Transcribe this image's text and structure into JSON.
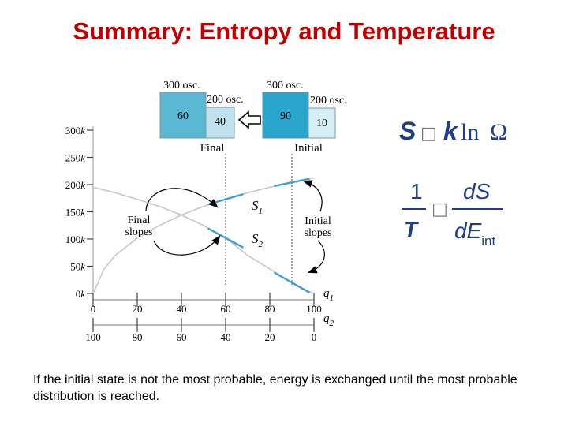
{
  "slide": {
    "title": "Summary: Entropy and Temperature",
    "caption": "If the initial state is not the most probable, energy is exchanged until the most probable distribution is reached."
  },
  "boxes": {
    "final": {
      "label": "Final",
      "a_osc": "300 osc.",
      "b_osc": "200 osc.",
      "a_value": "60",
      "b_value": "40"
    },
    "initial": {
      "label": "Initial",
      "a_osc": "300 osc.",
      "b_osc": "200 osc.",
      "a_value": "90",
      "b_value": "10"
    },
    "color_a_final": "#5bb8d4",
    "color_b_final": "#bfe2ee",
    "color_a_initial": "#2aa5cc",
    "color_b_initial": "#d6eef6"
  },
  "annotations": {
    "final_slopes": [
      "Final",
      "slopes"
    ],
    "initial_slopes": [
      "Initial",
      "slopes"
    ],
    "s1": "S",
    "s1_sub": "1",
    "s2": "S",
    "s2_sub": "2"
  },
  "formulas": {
    "entropy_S": "S",
    "entropy_box": "□",
    "entropy_k": "k",
    "entropy_ln": "ln",
    "entropy_omega": "Ω",
    "temp_num": "1",
    "temp_den": "T",
    "temp_box": "□",
    "temp_dS": "dS",
    "temp_dE": "dE",
    "temp_dE_sub": "int"
  },
  "chart_data": {
    "type": "line",
    "ylabel_ticks": [
      "300k",
      "250k",
      "200k",
      "150k",
      "100k",
      "50k",
      "0k"
    ],
    "y_values": [
      300,
      250,
      200,
      150,
      100,
      50,
      0
    ],
    "ylim": [
      0,
      300
    ],
    "x_axis_q1": {
      "label": "q",
      "sub": "1",
      "ticks": [
        "0",
        "20",
        "40",
        "60",
        "80",
        "100"
      ],
      "values": [
        0,
        20,
        40,
        60,
        80,
        100
      ]
    },
    "x_axis_q2": {
      "label": "q",
      "sub": "2",
      "ticks": [
        "100",
        "80",
        "60",
        "40",
        "20",
        "0"
      ],
      "values": [
        100,
        80,
        60,
        40,
        20,
        0
      ]
    },
    "series": [
      {
        "name": "S1",
        "x": [
          0,
          5,
          10,
          20,
          30,
          40,
          50,
          60,
          70,
          80,
          90,
          100
        ],
        "y": [
          0,
          45,
          70,
          102,
          125,
          144,
          160,
          173,
          185,
          195,
          204,
          212
        ]
      },
      {
        "name": "S2",
        "x": [
          0,
          10,
          20,
          30,
          40,
          50,
          60,
          70,
          80,
          90,
          95,
          100
        ],
        "y": [
          195,
          185,
          173,
          160,
          144,
          125,
          102,
          70,
          45,
          20,
          8,
          0
        ]
      }
    ],
    "tangents": [
      {
        "series": "S1",
        "x": 60,
        "slope": 1.18,
        "half": 8
      },
      {
        "series": "S2",
        "x": 60,
        "slope": -2.2,
        "half": 8
      },
      {
        "series": "S1",
        "x": 90,
        "slope": 0.85,
        "half": 8
      },
      {
        "series": "S2",
        "x": 90,
        "slope": -2.3,
        "half": 8
      }
    ],
    "final_marker_x": 60,
    "initial_marker_x": 90,
    "curve_color": "#c8c8c8",
    "tangent_color": "#3f9ed6"
  }
}
